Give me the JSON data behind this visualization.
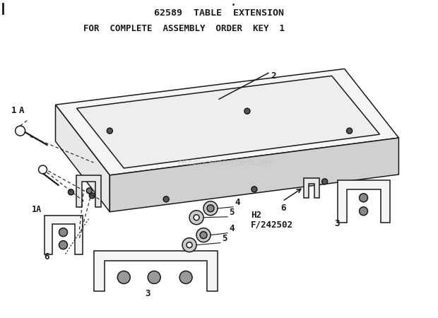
{
  "title1": "62589  TABLE  EXTENSION",
  "title2": "FOR  COMPLETE  ASSEMBLY  ORDER  KEY  1",
  "bg_color": "#ffffff",
  "line_color": "#1a1a1a",
  "watermark": "eReplacementParts.com",
  "part_code": "H 2\nF / 2 4 2 5 0 2"
}
